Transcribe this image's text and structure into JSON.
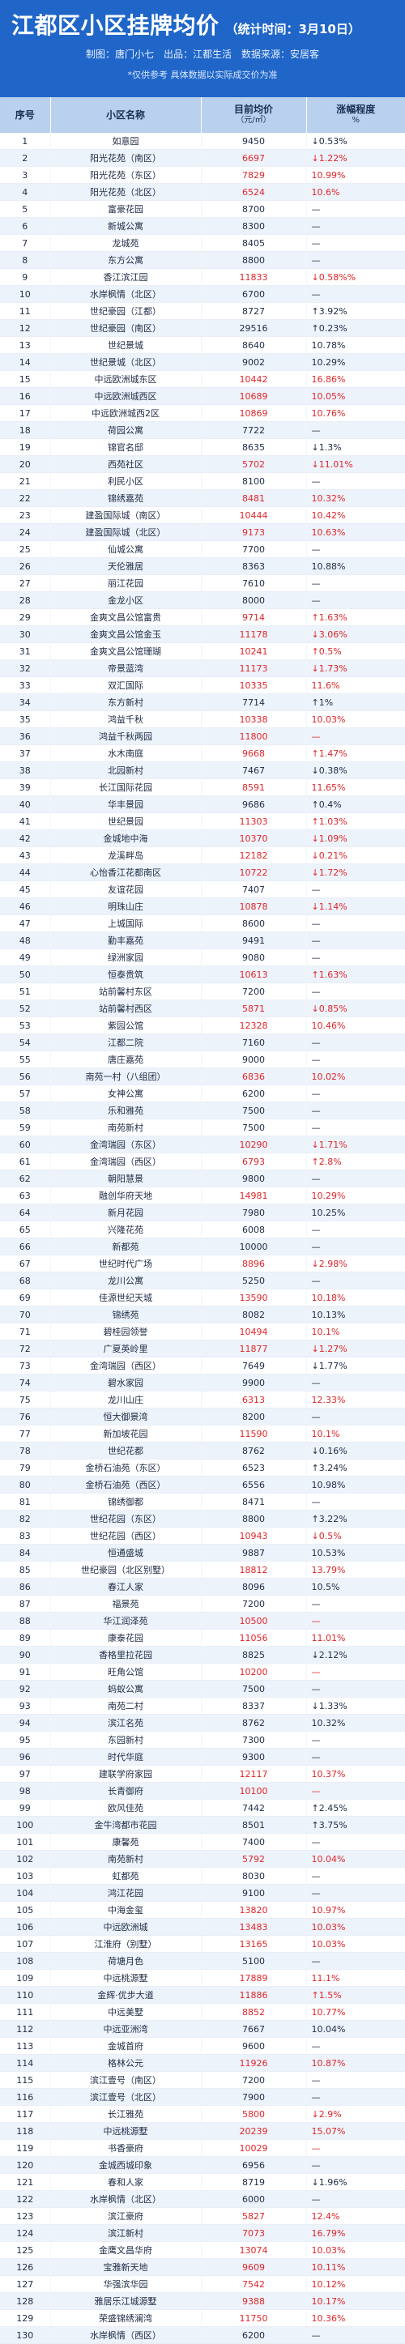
{
  "header": {
    "title": "江都区小区挂牌均价",
    "stat_time": "（统计时间：3月10日）",
    "meta": "制图：唐门小七　出品：江都生活　数据来源：安居客",
    "note": "*仅供参考 具体数据以实际成交价为准"
  },
  "table": {
    "columns": {
      "no": "序号",
      "name": "小区名称",
      "price": "目前均价",
      "price_unit": "（元/㎡）",
      "change": "涨幅程度",
      "change_sub": "%"
    },
    "rows": [
      {
        "no": "1",
        "name": "如意园",
        "price": "9450",
        "change": "↓0.53%"
      },
      {
        "no": "2",
        "name": "阳光花苑（南区）",
        "price": "6697",
        "change": "↓1.22%",
        "red": true
      },
      {
        "no": "3",
        "name": "阳光花苑（东区）",
        "price": "7829",
        "change": "10.99%",
        "red": true
      },
      {
        "no": "4",
        "name": "阳光花苑（北区）",
        "price": "6524",
        "change": "10.6%",
        "red": true
      },
      {
        "no": "5",
        "name": "富豪花园",
        "price": "8700",
        "change": "—"
      },
      {
        "no": "6",
        "name": "新城公寓",
        "price": "8300",
        "change": "—"
      },
      {
        "no": "7",
        "name": "龙城苑",
        "price": "8405",
        "change": "—"
      },
      {
        "no": "8",
        "name": "东方公寓",
        "price": "8800",
        "change": "—"
      },
      {
        "no": "9",
        "name": "香江滨江园",
        "price": "11833",
        "change": "↓0.58%%",
        "red": true
      },
      {
        "no": "10",
        "name": "水岸枫情（北区）",
        "price": "6700",
        "change": "—"
      },
      {
        "no": "11",
        "name": "世纪豪园（江都）",
        "price": "8727",
        "change": "↑3.92%"
      },
      {
        "no": "12",
        "name": "世纪豪园（南区）",
        "price": "29516",
        "change": "↑0.23%"
      },
      {
        "no": "13",
        "name": "世纪景城",
        "price": "8640",
        "change": "10.78%"
      },
      {
        "no": "14",
        "name": "世纪景城（北区）",
        "price": "9002",
        "change": "10.29%"
      },
      {
        "no": "15",
        "name": "中远欧洲城东区",
        "price": "10442",
        "change": "16.86%",
        "red": true
      },
      {
        "no": "16",
        "name": "中远欧洲城西区",
        "price": "10689",
        "change": "10.05%",
        "red": true
      },
      {
        "no": "17",
        "name": "中远欧洲城西2区",
        "price": "10869",
        "change": "10.76%",
        "red": true
      },
      {
        "no": "18",
        "name": "荷园公寓",
        "price": "7722",
        "change": "—"
      },
      {
        "no": "19",
        "name": "锦官名邸",
        "price": "8635",
        "change": "↓1.3%"
      },
      {
        "no": "20",
        "name": "西苑社区",
        "price": "5702",
        "change": "↓11.01%",
        "red": true
      },
      {
        "no": "21",
        "name": "利民小区",
        "price": "8100",
        "change": "—"
      },
      {
        "no": "22",
        "name": "锦绣嘉苑",
        "price": "8481",
        "change": "10.32%",
        "red": true
      },
      {
        "no": "23",
        "name": "建盈国际城（南区）",
        "price": "10444",
        "change": "10.42%",
        "red": true
      },
      {
        "no": "24",
        "name": "建盈国际城（北区）",
        "price": "9173",
        "change": "10.63%",
        "red": true
      },
      {
        "no": "25",
        "name": "仙城公寓",
        "price": "7700",
        "change": "—"
      },
      {
        "no": "26",
        "name": "天伦雅居",
        "price": "8363",
        "change": "10.88%"
      },
      {
        "no": "27",
        "name": "丽江花园",
        "price": "7610",
        "change": "—"
      },
      {
        "no": "28",
        "name": "金龙小区",
        "price": "8000",
        "change": "—"
      },
      {
        "no": "29",
        "name": "金爽文昌公馆富贵",
        "price": "9714",
        "change": "↑1.63%",
        "red": true
      },
      {
        "no": "30",
        "name": "金爽文昌公馆金玉",
        "price": "11178",
        "change": "↓3.06%",
        "red": true
      },
      {
        "no": "31",
        "name": "金爽文昌公馆珊瑚",
        "price": "10241",
        "change": "↑0.5%",
        "red": true
      },
      {
        "no": "32",
        "name": "帝景蓝湾",
        "price": "11173",
        "change": "↓1.73%",
        "red": true
      },
      {
        "no": "33",
        "name": "双汇国际",
        "price": "10335",
        "change": "11.6%",
        "red": true
      },
      {
        "no": "34",
        "name": "东方新村",
        "price": "7714",
        "change": "↑1%"
      },
      {
        "no": "35",
        "name": "鸿益千秋",
        "price": "10338",
        "change": "10.03%",
        "red": true
      },
      {
        "no": "36",
        "name": "鸿益千秋两园",
        "price": "11800",
        "change": "—",
        "red": true
      },
      {
        "no": "37",
        "name": "水木南庭",
        "price": "9668",
        "change": "↑1.47%",
        "red": true
      },
      {
        "no": "38",
        "name": "北园新村",
        "price": "7467",
        "change": "↓0.38%"
      },
      {
        "no": "39",
        "name": "长江国际花园",
        "price": "8591",
        "change": "11.65%",
        "red": true
      },
      {
        "no": "40",
        "name": "华丰景园",
        "price": "9686",
        "change": "↑0.4%"
      },
      {
        "no": "41",
        "name": "世纪景园",
        "price": "11303",
        "change": "↑1.03%",
        "red": true
      },
      {
        "no": "42",
        "name": "金城地中海",
        "price": "10370",
        "change": "↓1.09%",
        "red": true
      },
      {
        "no": "43",
        "name": "龙溪畔岛",
        "price": "12182",
        "change": "↓0.21%",
        "red": true
      },
      {
        "no": "44",
        "name": "心怡香江花都南区",
        "price": "10722",
        "change": "↓1.72%",
        "red": true
      },
      {
        "no": "45",
        "name": "友谊花园",
        "price": "7407",
        "change": "—"
      },
      {
        "no": "46",
        "name": "明珠山庄",
        "price": "10878",
        "change": "↓1.14%",
        "red": true
      },
      {
        "no": "47",
        "name": "上城国际",
        "price": "8600",
        "change": "—"
      },
      {
        "no": "48",
        "name": "勤丰嘉苑",
        "price": "9491",
        "change": "—"
      },
      {
        "no": "49",
        "name": "绿洲家园",
        "price": "9080",
        "change": "—"
      },
      {
        "no": "50",
        "name": "恒泰贵筑",
        "price": "10613",
        "change": "↑1.63%",
        "red": true
      },
      {
        "no": "51",
        "name": "站前馨村东区",
        "price": "7200",
        "change": "—"
      },
      {
        "no": "52",
        "name": "站前馨村西区",
        "price": "5871",
        "change": "↓0.85%",
        "red": true
      },
      {
        "no": "53",
        "name": "紫园公馆",
        "price": "12328",
        "change": "10.46%",
        "red": true
      },
      {
        "no": "54",
        "name": "江都二院",
        "price": "7160",
        "change": "—"
      },
      {
        "no": "55",
        "name": "唐庄嘉苑",
        "price": "9000",
        "change": "—"
      },
      {
        "no": "56",
        "name": "南苑一村（八组团）",
        "price": "6836",
        "change": "10.02%",
        "red": true
      },
      {
        "no": "57",
        "name": "女神公寓",
        "price": "6200",
        "change": "—"
      },
      {
        "no": "58",
        "name": "乐和雅苑",
        "price": "7500",
        "change": "—"
      },
      {
        "no": "59",
        "name": "南苑新村",
        "price": "7500",
        "change": "—"
      },
      {
        "no": "60",
        "name": "金湾瑞园（东区）",
        "price": "10290",
        "change": "↓1.71%",
        "red": true
      },
      {
        "no": "61",
        "name": "金湾瑞园（西区）",
        "price": "6793",
        "change": "↑2.8%",
        "red": true
      },
      {
        "no": "62",
        "name": "朝阳慧景",
        "price": "9800",
        "change": "—"
      },
      {
        "no": "63",
        "name": "融创华府天地",
        "price": "14981",
        "change": "10.29%",
        "red": true
      },
      {
        "no": "64",
        "name": "新月花园",
        "price": "7980",
        "change": "10.25%"
      },
      {
        "no": "65",
        "name": "兴隆花苑",
        "price": "6008",
        "change": "—"
      },
      {
        "no": "66",
        "name": "新都苑",
        "price": "10000",
        "change": "—"
      },
      {
        "no": "67",
        "name": "世纪时代广场",
        "price": "8896",
        "change": "↓2.98%",
        "red": true
      },
      {
        "no": "68",
        "name": "龙川公寓",
        "price": "5250",
        "change": "—"
      },
      {
        "no": "69",
        "name": "佳源世纪天城",
        "price": "13590",
        "change": "10.18%",
        "red": true
      },
      {
        "no": "70",
        "name": "锦绣苑",
        "price": "8082",
        "change": "10.13%"
      },
      {
        "no": "71",
        "name": "碧桂园领誉",
        "price": "10494",
        "change": "10.1%",
        "red": true
      },
      {
        "no": "72",
        "name": "广夏英岭里",
        "price": "11877",
        "change": "↓1.27%",
        "red": true
      },
      {
        "no": "73",
        "name": "金湾瑞园（西区）",
        "price": "7649",
        "change": "↓1.77%"
      },
      {
        "no": "74",
        "name": "碧水家园",
        "price": "9900",
        "change": "—"
      },
      {
        "no": "75",
        "name": "龙川山庄",
        "price": "6313",
        "change": "12.33%",
        "red": true
      },
      {
        "no": "76",
        "name": "恒大御景湾",
        "price": "8200",
        "change": "—"
      },
      {
        "no": "77",
        "name": "新加坡花园",
        "price": "11590",
        "change": "10.1%",
        "red": true
      },
      {
        "no": "78",
        "name": "世纪花都",
        "price": "8762",
        "change": "↓0.16%"
      },
      {
        "no": "79",
        "name": "金桥石油苑（东区）",
        "price": "6523",
        "change": "↑3.24%"
      },
      {
        "no": "80",
        "name": "金桥石油苑（西区）",
        "price": "6556",
        "change": "10.98%"
      },
      {
        "no": "81",
        "name": "锦绣御都",
        "price": "8471",
        "change": "—"
      },
      {
        "no": "82",
        "name": "世纪花园（东区）",
        "price": "8800",
        "change": "↑3.22%"
      },
      {
        "no": "83",
        "name": "世纪花园（西区）",
        "price": "10943",
        "change": "↓0.5%",
        "red": true
      },
      {
        "no": "84",
        "name": "恒通盛城",
        "price": "9887",
        "change": "10.53%"
      },
      {
        "no": "85",
        "name": "世纪豪园（北区别墅）",
        "price": "18812",
        "change": "13.79%",
        "red": true
      },
      {
        "no": "86",
        "name": "春江人家",
        "price": "8096",
        "change": "10.5%"
      },
      {
        "no": "87",
        "name": "福景苑",
        "price": "7200",
        "change": "—"
      },
      {
        "no": "88",
        "name": "华江润泽苑",
        "price": "10500",
        "change": "—",
        "red": true
      },
      {
        "no": "89",
        "name": "康泰花园",
        "price": "11056",
        "change": "11.01%",
        "red": true
      },
      {
        "no": "90",
        "name": "香格里拉花园",
        "price": "8825",
        "change": "↓2.12%"
      },
      {
        "no": "91",
        "name": "旺角公馆",
        "price": "10200",
        "change": "—",
        "red": true
      },
      {
        "no": "92",
        "name": "蚂蚁公寓",
        "price": "7500",
        "change": "—"
      },
      {
        "no": "93",
        "name": "南苑二村",
        "price": "8337",
        "change": "↓1.33%"
      },
      {
        "no": "94",
        "name": "滨江名苑",
        "price": "8762",
        "change": "10.32%"
      },
      {
        "no": "95",
        "name": "东园新村",
        "price": "7300",
        "change": "—"
      },
      {
        "no": "96",
        "name": "时代华庭",
        "price": "9300",
        "change": "—"
      },
      {
        "no": "97",
        "name": "建联学府家园",
        "price": "12117",
        "change": "10.37%",
        "red": true
      },
      {
        "no": "98",
        "name": "长青御府",
        "price": "10100",
        "change": "—",
        "red": true
      },
      {
        "no": "99",
        "name": "欧风佳苑",
        "price": "7442",
        "change": "↑2.45%"
      },
      {
        "no": "100",
        "name": "金牛湾都市花园",
        "price": "8501",
        "change": "↑3.75%"
      },
      {
        "no": "101",
        "name": "康馨苑",
        "price": "7400",
        "change": "—"
      },
      {
        "no": "102",
        "name": "南苑新村",
        "price": "5792",
        "change": "10.04%",
        "red": true
      },
      {
        "no": "103",
        "name": "虹都苑",
        "price": "8030",
        "change": "—"
      },
      {
        "no": "104",
        "name": "鸿江花园",
        "price": "9100",
        "change": "—"
      },
      {
        "no": "105",
        "name": "中海金玺",
        "price": "13820",
        "change": "10.97%",
        "red": true
      },
      {
        "no": "106",
        "name": "中远欧洲城",
        "price": "13483",
        "change": "10.03%",
        "red": true
      },
      {
        "no": "107",
        "name": "江淮府（别墅）",
        "price": "13165",
        "change": "10.03%",
        "red": true
      },
      {
        "no": "108",
        "name": "荷塘月色",
        "price": "5100",
        "change": "—"
      },
      {
        "no": "109",
        "name": "中远桃源墅",
        "price": "17889",
        "change": "11.1%",
        "red": true
      },
      {
        "no": "110",
        "name": "金辉·优步大道",
        "price": "11886",
        "change": "↑1.5%",
        "red": true
      },
      {
        "no": "111",
        "name": "中远美墅",
        "price": "8852",
        "change": "10.77%",
        "red": true
      },
      {
        "no": "112",
        "name": "中远亚洲湾",
        "price": "7667",
        "change": "10.04%"
      },
      {
        "no": "113",
        "name": "金城首府",
        "price": "9600",
        "change": "—"
      },
      {
        "no": "114",
        "name": "格林公元",
        "price": "11926",
        "change": "10.87%",
        "red": true
      },
      {
        "no": "115",
        "name": "滨江壹号（南区）",
        "price": "7200",
        "change": "—"
      },
      {
        "no": "116",
        "name": "滨江壹号（北区）",
        "price": "7900",
        "change": "—"
      },
      {
        "no": "117",
        "name": "长江雅苑",
        "price": "5800",
        "change": "↓2.9%",
        "red": true
      },
      {
        "no": "118",
        "name": "中远桃源墅",
        "price": "20239",
        "change": "15.07%",
        "red": true
      },
      {
        "no": "119",
        "name": "书香豪府",
        "price": "10029",
        "change": "—",
        "red": true
      },
      {
        "no": "120",
        "name": "金城西城印象",
        "price": "6956",
        "change": "—"
      },
      {
        "no": "121",
        "name": "春和人家",
        "price": "8719",
        "change": "↓1.96%"
      },
      {
        "no": "122",
        "name": "水岸枫情（北区）",
        "price": "6000",
        "change": "—"
      },
      {
        "no": "123",
        "name": "滨江豪府",
        "price": "5827",
        "change": "12.4%",
        "red": true
      },
      {
        "no": "124",
        "name": "滨江新村",
        "price": "7073",
        "change": "16.79%",
        "red": true
      },
      {
        "no": "125",
        "name": "金鹰文昌华府",
        "price": "13074",
        "change": "10.03%",
        "red": true
      },
      {
        "no": "126",
        "name": "宝雅新天地",
        "price": "9609",
        "change": "10.11%",
        "red": true
      },
      {
        "no": "127",
        "name": "华强滨华园",
        "price": "7542",
        "change": "10.12%",
        "red": true
      },
      {
        "no": "128",
        "name": "雅居乐江城源墅",
        "price": "9388",
        "change": "10.17%",
        "red": true
      },
      {
        "no": "129",
        "name": "荣盛锦绣澜湾",
        "price": "11750",
        "change": "10.36%",
        "red": true
      },
      {
        "no": "130",
        "name": "水岸枫情（西区）",
        "price": "6200",
        "change": "—"
      }
    ]
  }
}
